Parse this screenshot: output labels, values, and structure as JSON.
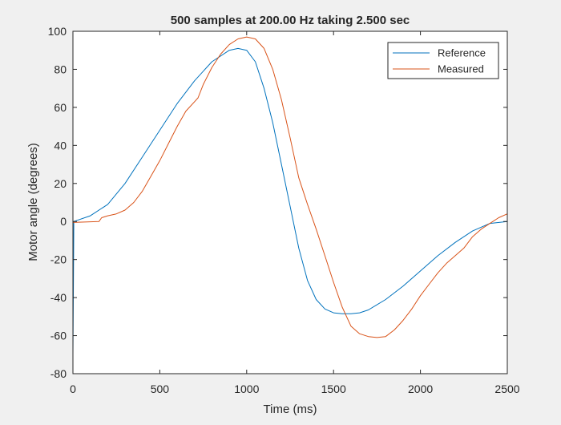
{
  "chart_data": {
    "type": "line",
    "title": "500 samples at  200.00 Hz taking 2.500 sec",
    "xlabel": "Time (ms)",
    "ylabel": "Motor angle (degrees)",
    "xlim": [
      0,
      2500
    ],
    "ylim": [
      -80,
      100
    ],
    "xticks": [
      0,
      500,
      1000,
      1500,
      2000,
      2500
    ],
    "yticks": [
      -80,
      -60,
      -40,
      -20,
      0,
      20,
      40,
      60,
      80,
      100
    ],
    "grid": false,
    "legend_position": "top-right",
    "series": [
      {
        "name": "Reference",
        "color": "#0072BD",
        "x": [
          0,
          5,
          100,
          200,
          300,
          400,
          500,
          600,
          700,
          800,
          900,
          950,
          1000,
          1050,
          1100,
          1150,
          1200,
          1250,
          1300,
          1350,
          1400,
          1450,
          1500,
          1550,
          1600,
          1650,
          1700,
          1800,
          1900,
          2000,
          2100,
          2200,
          2300,
          2400,
          2500
        ],
        "y": [
          -70,
          0,
          3,
          9,
          20,
          34,
          48,
          62,
          74,
          84,
          90,
          91,
          90,
          84,
          70,
          52,
          30,
          8,
          -14,
          -31,
          -41,
          -46,
          -48,
          -48.5,
          -48.5,
          -48,
          -46.5,
          -41,
          -34,
          -26,
          -18,
          -11,
          -5,
          -1,
          0
        ]
      },
      {
        "name": "Measured",
        "color": "#D95319",
        "x": [
          0,
          150,
          165,
          200,
          250,
          300,
          350,
          400,
          450,
          500,
          550,
          600,
          650,
          700,
          720,
          750,
          800,
          850,
          900,
          950,
          1000,
          1050,
          1100,
          1150,
          1200,
          1250,
          1300,
          1350,
          1400,
          1450,
          1500,
          1550,
          1600,
          1650,
          1700,
          1750,
          1800,
          1850,
          1900,
          1950,
          2000,
          2050,
          2100,
          2150,
          2200,
          2250,
          2300,
          2350,
          2400,
          2450,
          2500
        ],
        "y": [
          -0.5,
          0,
          2,
          3,
          4,
          6,
          10,
          16,
          24,
          32,
          41,
          50,
          58,
          63,
          65,
          72,
          81,
          88,
          93,
          96,
          97,
          96,
          91,
          80,
          64,
          44,
          23,
          9,
          -4,
          -18,
          -32,
          -45,
          -55,
          -59,
          -60.5,
          -61,
          -60.5,
          -57,
          -52,
          -46,
          -39,
          -33,
          -27,
          -22,
          -18,
          -14,
          -8,
          -4,
          -1,
          2,
          4
        ]
      }
    ]
  }
}
